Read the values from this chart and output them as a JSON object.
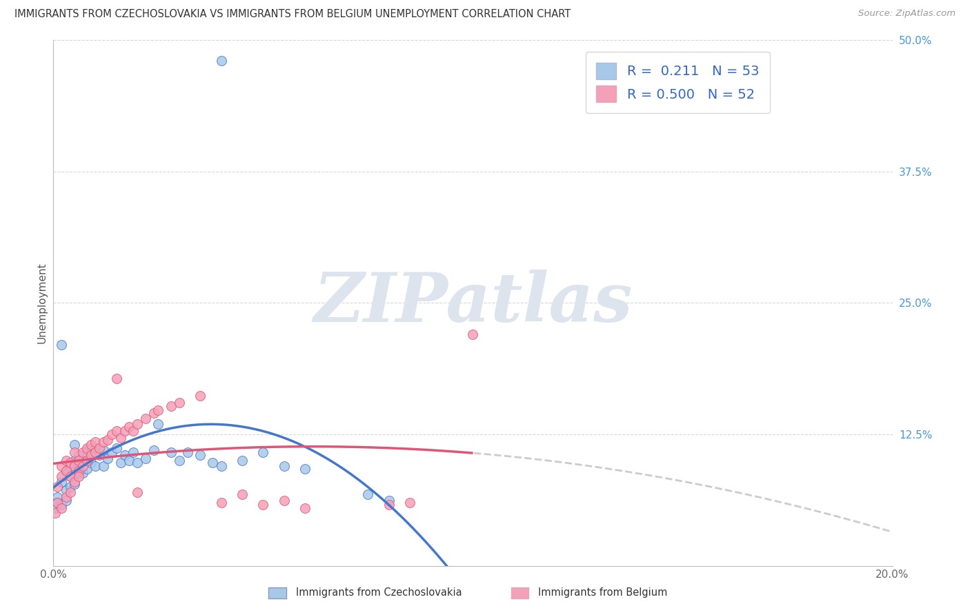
{
  "title": "IMMIGRANTS FROM CZECHOSLOVAKIA VS IMMIGRANTS FROM BELGIUM UNEMPLOYMENT CORRELATION CHART",
  "source": "Source: ZipAtlas.com",
  "ylabel": "Unemployment",
  "xlim": [
    0.0,
    0.2
  ],
  "ylim": [
    0.0,
    0.5
  ],
  "R_blue": 0.211,
  "N_blue": 53,
  "R_pink": 0.5,
  "N_pink": 52,
  "color_blue": "#a8c8e8",
  "color_pink": "#f4a0b8",
  "line_color_blue": "#4477cc",
  "line_color_pink": "#e05575",
  "yticklabel_color": "#4499dd",
  "grid_color": "#cccccc",
  "background_color": "#ffffff",
  "watermark_color": "#dde4ee",
  "legend_label_color": "#3366cc",
  "bottom_legend_blue_text": "#5588cc",
  "bottom_legend_pink_text": "#e05575",
  "bottom_legend_blue_box": "#a8c8e8",
  "bottom_legend_pink_box": "#f4a0b8"
}
